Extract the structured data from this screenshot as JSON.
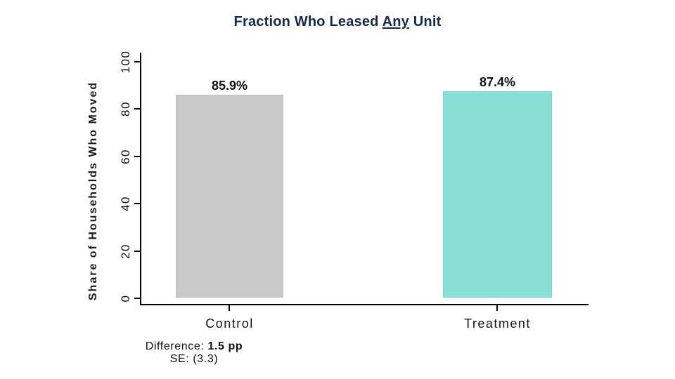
{
  "chart_data": {
    "type": "bar",
    "title": {
      "prefix": "Fraction Who Leased ",
      "underlined": "Any",
      "suffix": " Unit",
      "full": "Fraction Who Leased Any Unit"
    },
    "title_color": "#15294B",
    "ylabel": "Share of Households Who Moved",
    "xlabel": "",
    "categories": [
      "Control",
      "Treatment"
    ],
    "values": [
      85.9,
      87.4
    ],
    "value_labels": [
      "85.9%",
      "87.4%"
    ],
    "bar_colors": [
      "#C9C9C9",
      "#8AE0D6"
    ],
    "ylim": [
      0,
      100
    ],
    "ytick_values": [
      0,
      20,
      40,
      60,
      80,
      100
    ],
    "ytick_labels": [
      "0",
      "20",
      "40",
      "60",
      "80",
      "100"
    ],
    "grid": false,
    "legend_position": "none",
    "annotation": {
      "difference_label": "Difference:",
      "difference_value": "1.5 pp",
      "se_label": "SE:",
      "se_value": "(3.3)"
    }
  }
}
